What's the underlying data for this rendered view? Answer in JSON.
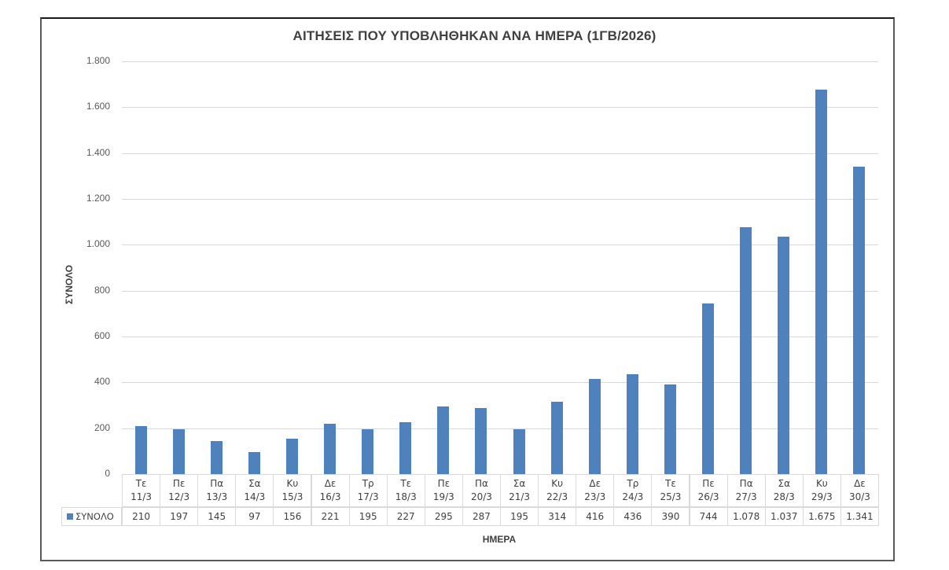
{
  "chart_data": {
    "type": "bar",
    "title": "ΑΙΤΗΣΕΙΣ ΠΟΥ ΥΠΟΒΛΗΘΗΚΑΝ ΑΝΑ ΗΜΕΡΑ (1ΓΒ/2026)",
    "xlabel": "ΗΜΕΡΑ",
    "ylabel": "ΣΥΝΟΛΟ",
    "ylim": [
      0,
      1800
    ],
    "yticks": [
      "0",
      "200",
      "400",
      "600",
      "800",
      "1.000",
      "1.200",
      "1.400",
      "1.600",
      "1.800"
    ],
    "ytick_values": [
      0,
      200,
      400,
      600,
      800,
      1000,
      1200,
      1400,
      1600,
      1800
    ],
    "grid": true,
    "legend_position": "data-table",
    "bar_color": "#4f81bd",
    "categories": [
      {
        "day": "Τε",
        "date": "11/3"
      },
      {
        "day": "Πε",
        "date": "12/3"
      },
      {
        "day": "Πα",
        "date": "13/3"
      },
      {
        "day": "Σα",
        "date": "14/3"
      },
      {
        "day": "Κυ",
        "date": "15/3"
      },
      {
        "day": "Δε",
        "date": "16/3"
      },
      {
        "day": "Τρ",
        "date": "17/3"
      },
      {
        "day": "Τε",
        "date": "18/3"
      },
      {
        "day": "Πε",
        "date": "19/3"
      },
      {
        "day": "Πα",
        "date": "20/3"
      },
      {
        "day": "Σα",
        "date": "21/3"
      },
      {
        "day": "Κυ",
        "date": "22/3"
      },
      {
        "day": "Δε",
        "date": "23/3"
      },
      {
        "day": "Τρ",
        "date": "24/3"
      },
      {
        "day": "Τε",
        "date": "25/3"
      },
      {
        "day": "Πε",
        "date": "26/3"
      },
      {
        "day": "Πα",
        "date": "27/3"
      },
      {
        "day": "Σα",
        "date": "28/3"
      },
      {
        "day": "Κυ",
        "date": "29/3"
      },
      {
        "day": "Δε",
        "date": "30/3"
      }
    ],
    "series": [
      {
        "name": "ΣΥΝΟΛΟ",
        "values": [
          210,
          197,
          145,
          97,
          156,
          221,
          195,
          227,
          295,
          287,
          195,
          314,
          416,
          436,
          390,
          744,
          1078,
          1037,
          1675,
          1341
        ],
        "labels": [
          "210",
          "197",
          "145",
          "97",
          "156",
          "221",
          "195",
          "227",
          "295",
          "287",
          "195",
          "314",
          "416",
          "436",
          "390",
          "744",
          "1.078",
          "1.037",
          "1.675",
          "1.341"
        ]
      }
    ]
  }
}
